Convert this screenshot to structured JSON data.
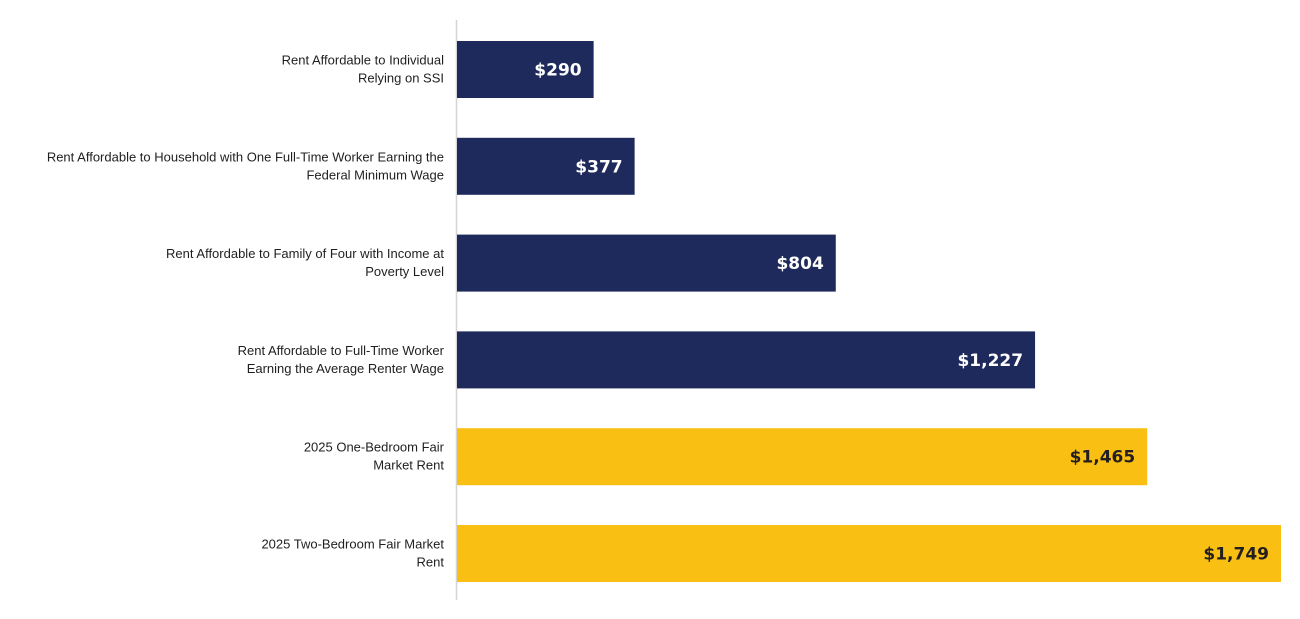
{
  "colors": {
    "navy": "#1f2a5c",
    "gold": "#f9bf13",
    "axis": "#d5d5d5",
    "label_on_navy": "#ffffff",
    "label_on_gold": "#231f20"
  },
  "chart_data": {
    "type": "bar",
    "orientation": "horizontal",
    "title": "",
    "xlabel": "",
    "ylabel": "",
    "grid": false,
    "legend": "none",
    "xlim": [
      0,
      1749
    ],
    "categories": [
      "Rent Affordable to Individual Relying on SSI",
      "Rent Affordable to Household with One Full-Time Worker Earning the Federal Minimum Wage",
      "Rent Affordable to Family of Four with Income at Poverty Level",
      "Rent Affordable to Full-Time Worker Earning the Average Renter Wage",
      "2025 One-Bedroom Fair Market Rent",
      "2025 Two-Bedroom Fair Market Rent"
    ],
    "category_lines": [
      [
        "Rent Affordable to Individual",
        "Relying on SSI"
      ],
      [
        "Rent Affordable to Household with One Full-Time Worker Earning the",
        "Federal Minimum Wage"
      ],
      [
        "Rent Affordable to Family of Four with Income at",
        "Poverty Level"
      ],
      [
        "Rent Affordable to Full-Time Worker",
        "Earning the Average Renter Wage"
      ],
      [
        "2025 One-Bedroom Fair",
        "Market Rent"
      ],
      [
        "2025 Two-Bedroom Fair Market",
        "Rent"
      ]
    ],
    "values": [
      290,
      377,
      804,
      1227,
      1465,
      1749
    ],
    "value_labels": [
      "$290",
      "$377",
      "$804",
      "$1,227",
      "$1,465",
      "$1,749"
    ],
    "bar_colors": [
      "navy",
      "navy",
      "navy",
      "navy",
      "gold",
      "gold"
    ]
  }
}
